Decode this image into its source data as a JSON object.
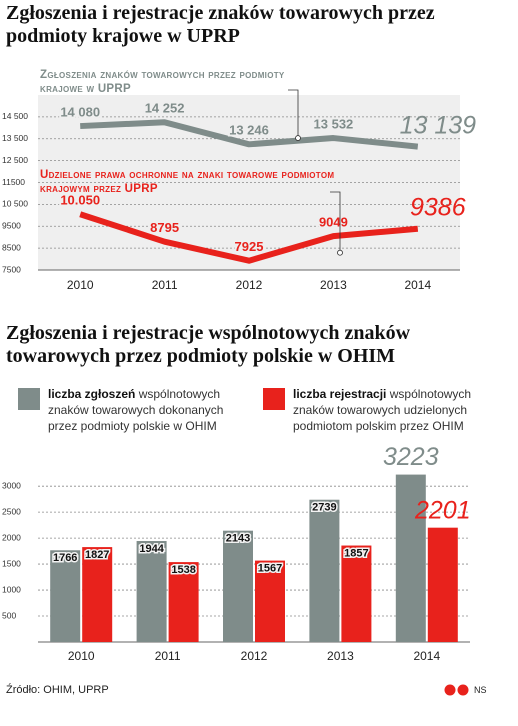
{
  "chart_data": [
    {
      "type": "line",
      "title": "Zgłoszenia i rejestracje znaków towarowych przez podmioty krajowe w UPRP",
      "categories": [
        "2010",
        "2011",
        "2012",
        "2013",
        "2014"
      ],
      "series": [
        {
          "name": "Zgłoszenia znaków towarowych przez podmioty krajowe w UPRP",
          "color": "#7f8c8a",
          "values": [
            14080,
            14252,
            13246,
            13532,
            13139
          ],
          "value_labels": [
            "14 080",
            "14 252",
            "13 246",
            "13 532",
            "13 139"
          ]
        },
        {
          "name": "Udzielone prawa ochronne na znaki towarowe podmiotom krajowym przez UPRP",
          "color": "#e8221c",
          "values": [
            10050,
            8795,
            7925,
            9049,
            9386
          ],
          "value_labels": [
            "10.050",
            "8795",
            "7925",
            "9049",
            "9386"
          ]
        }
      ],
      "ylim": [
        7500,
        15500
      ],
      "yticks": [
        7500,
        8500,
        9500,
        {
          "value": 10500,
          "label": "10 500"
        },
        11500,
        {
          "value": 12500,
          "label": "12 500"
        },
        {
          "value": 13500,
          "label": "13 500"
        },
        {
          "value": 14500,
          "label": "14 500"
        }
      ],
      "grid": true
    },
    {
      "type": "bar",
      "title": "Zgłoszenia i rejestracje wspólnotowych znaków towarowych przez podmioty polskie w OHIM",
      "categories": [
        "2010",
        "2011",
        "2012",
        "2013",
        "2014"
      ],
      "series": [
        {
          "name": "liczba zgłoszeń",
          "description": "wspólnotowych znaków towarowych dokonanych przez podmioty polskie w OHIM",
          "color": "#7f8c8a",
          "values": [
            1766,
            1944,
            2143,
            2739,
            3223
          ]
        },
        {
          "name": "liczba rejestracji",
          "description": "wspólnotowych znaków towarowych udzielonych podmiotom polskim przez OHIM",
          "color": "#e8221c",
          "values": [
            1827,
            1538,
            1567,
            1857,
            2201
          ]
        }
      ],
      "ylim": [
        0,
        3600
      ],
      "yticks": [
        500,
        1000,
        1500,
        2000,
        2500,
        3000
      ],
      "grid": true
    }
  ],
  "source": "Źródło: OHIM, UPRP",
  "credit": "NS"
}
